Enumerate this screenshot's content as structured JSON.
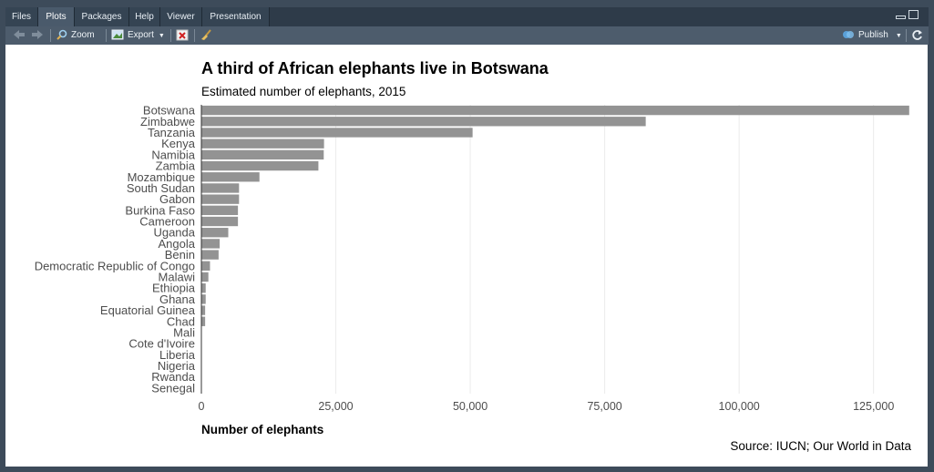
{
  "tabs": [
    {
      "label": "Files"
    },
    {
      "label": "Plots"
    },
    {
      "label": "Packages"
    },
    {
      "label": "Help"
    },
    {
      "label": "Viewer"
    },
    {
      "label": "Presentation"
    }
  ],
  "toolbar": {
    "back_icon": "arrow-left-icon",
    "forward_icon": "arrow-right-icon",
    "zoom_label": "Zoom",
    "export_label": "Export",
    "publish_label": "Publish"
  },
  "colors": {
    "bar": "#939393",
    "grid": "#ebebeb",
    "accent": "#5aa0d8"
  },
  "chart_data": {
    "type": "bar",
    "orientation": "horizontal",
    "title": "A third of African elephants live in Botswana",
    "subtitle": "Estimated number of elephants, 2015",
    "xlabel": "Number of elephants",
    "ylabel": "",
    "caption": "Source: IUCN; Our World in Data",
    "xlim": [
      0,
      132000
    ],
    "xticks": [
      0,
      25000,
      50000,
      75000,
      100000,
      125000
    ],
    "xtick_labels": [
      "0",
      "25,000",
      "50,000",
      "75,000",
      "100,000",
      "125,000"
    ],
    "grid": "vertical",
    "categories": [
      "Botswana",
      "Zimbabwe",
      "Tanzania",
      "Kenya",
      "Namibia",
      "Zambia",
      "Mozambique",
      "South Sudan",
      "Gabon",
      "Burkina Faso",
      "Cameroon",
      "Uganda",
      "Angola",
      "Benin",
      "Democratic Republic of Congo",
      "Malawi",
      "Ethiopia",
      "Ghana",
      "Equatorial Guinea",
      "Chad",
      "Mali",
      "Cote d'Ivoire",
      "Liberia",
      "Nigeria",
      "Rwanda",
      "Senegal"
    ],
    "values": [
      131626,
      82630,
      50433,
      22809,
      22754,
      21759,
      10800,
      7000,
      7000,
      6800,
      6800,
      5000,
      3400,
      3200,
      1600,
      1300,
      800,
      800,
      700,
      700,
      0,
      0,
      0,
      0,
      0,
      0
    ]
  }
}
